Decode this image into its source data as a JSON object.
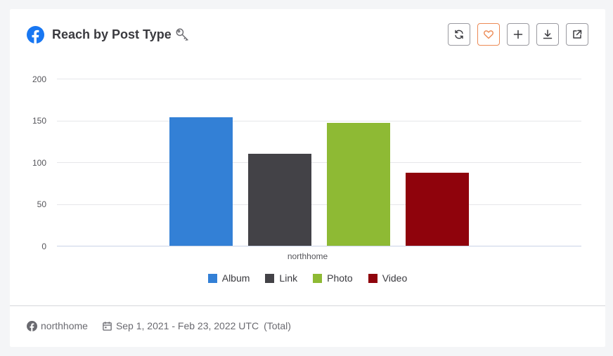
{
  "header": {
    "title": "Reach by Post Type",
    "network_icon": "facebook-icon",
    "extra_icon": "key-icon",
    "toolbar": [
      {
        "name": "refresh-button",
        "icon": "refresh-icon"
      },
      {
        "name": "favorite-button",
        "icon": "heart-icon"
      },
      {
        "name": "add-button",
        "icon": "plus-icon"
      },
      {
        "name": "download-button",
        "icon": "download-icon"
      },
      {
        "name": "open-external-button",
        "icon": "external-link-icon"
      }
    ]
  },
  "colors": {
    "Album": "#3380d6",
    "Link": "#434247",
    "Photo": "#8eba34",
    "Video": "#8f030c",
    "favorite_border": "#ec8a55",
    "facebook": "#1877f2"
  },
  "chart_data": {
    "type": "bar",
    "title": "Reach by Post Type",
    "categories": [
      "northhome"
    ],
    "series": [
      {
        "name": "Album",
        "values": [
          154
        ]
      },
      {
        "name": "Link",
        "values": [
          110
        ]
      },
      {
        "name": "Photo",
        "values": [
          147
        ]
      },
      {
        "name": "Video",
        "values": [
          87
        ]
      }
    ],
    "xlabel": "",
    "ylabel": "",
    "ylim": [
      0,
      200
    ],
    "yticks": [
      "200",
      "150",
      "100",
      "50",
      "0"
    ],
    "grid": true,
    "legend_position": "bottom"
  },
  "legend": [
    {
      "label": "Album"
    },
    {
      "label": "Link"
    },
    {
      "label": "Photo"
    },
    {
      "label": "Video"
    }
  ],
  "footer": {
    "account": "northhome",
    "date_range": "Sep 1, 2021 - Feb 23, 2022 UTC",
    "aggregation": "(Total)"
  }
}
